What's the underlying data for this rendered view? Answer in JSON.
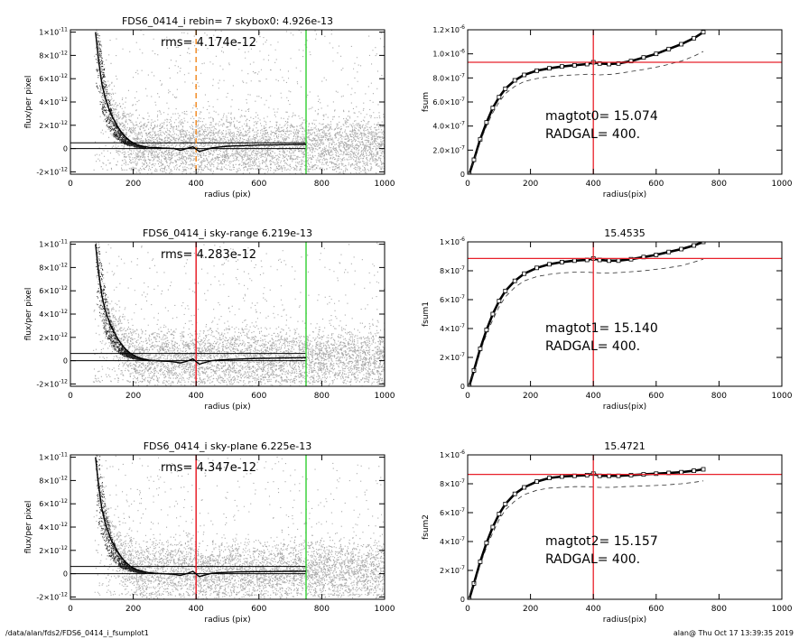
{
  "footer": {
    "path": "/data/alan/fds2/FDS6_0414_i_fsumplot1",
    "stamp": "alan@  Thu Oct 17 13:39:35 2019"
  },
  "colors": {
    "scatter": "#a9a9a9",
    "profile": "#000000",
    "red": "#e8202a",
    "green": "#3fd23f",
    "orange": "#f28c28"
  },
  "chart_data": [
    {
      "type": "scatter",
      "panel": "flux-profile-1",
      "title": "FDS6_0414_i rebin= 7    skybox0:  4.926e-13",
      "annotation": "rms= 4.174e-12",
      "xlabel": "radius (pix)",
      "ylabel": "flux/per pixel",
      "xlim": [
        0,
        1000
      ],
      "ylim": [
        -2.2e-12,
        1.02e-11
      ],
      "xticks": [
        0,
        200,
        400,
        600,
        800,
        1000
      ],
      "yticks": [
        "1×10^-11",
        "8×10^-12",
        "6×10^-12",
        "4×10^-12",
        "2×10^-12",
        "0",
        "-2×10^-12"
      ],
      "profile": {
        "x": [
          80,
          90,
          100,
          110,
          120,
          130,
          140,
          150,
          160,
          175,
          190,
          210,
          230,
          250,
          270,
          290,
          310,
          330,
          350,
          370,
          390,
          410,
          430,
          450,
          470,
          500,
          530,
          560,
          600,
          650,
          700,
          750
        ],
        "y": [
          1e-11,
          7.5e-12,
          5.6e-12,
          4.4e-12,
          3.6e-12,
          2.9e-12,
          2.4e-12,
          1.9e-12,
          1.5e-12,
          1e-12,
          6.5e-13,
          3.5e-13,
          2e-13,
          1e-13,
          8e-14,
          5e-14,
          3e-14,
          0,
          -1.5e-13,
          0,
          1.5e-13,
          -2.5e-13,
          -1e-13,
          6e-14,
          1.2e-13,
          2e-13,
          2.3e-13,
          2.6e-13,
          3e-13,
          3.2e-13,
          3.4e-13,
          3.6e-13
        ]
      },
      "hlines": [
        4.926e-13,
        0
      ],
      "vlines": [
        {
          "x": 400,
          "color": "orange",
          "dashed": true
        },
        {
          "x": 750,
          "color": "green",
          "dashed": false
        }
      ]
    },
    {
      "type": "line",
      "panel": "fsum-1",
      "title": "",
      "xlabel": "radius(pix)",
      "ylabel": "fsum",
      "xlim": [
        0,
        1000
      ],
      "ylim": [
        0,
        1.2e-06
      ],
      "xticks": [
        0,
        200,
        400,
        600,
        800,
        1000
      ],
      "yticks": [
        "1.2×10^-6",
        "1.0×10^-6",
        "8.0×10^-7",
        "6.0×10^-7",
        "4.0×10^-7",
        "2.0×10^-7",
        "0"
      ],
      "annotations": [
        "magtot0=  15.074",
        "RADGAL=    400."
      ],
      "series": [
        {
          "style": "squares",
          "x": [
            5,
            20,
            40,
            60,
            80,
            100,
            120,
            150,
            180,
            220,
            260,
            300,
            340,
            380,
            400,
            420,
            450,
            480,
            520,
            560,
            600,
            640,
            680,
            720,
            750
          ],
          "y": [
            0,
            1.2e-07,
            2.9e-07,
            4.3e-07,
            5.5e-07,
            6.4e-07,
            7.1e-07,
            7.8e-07,
            8.25e-07,
            8.6e-07,
            8.8e-07,
            8.95e-07,
            9.05e-07,
            9.15e-07,
            9.3e-07,
            9.2e-07,
            9.15e-07,
            9.2e-07,
            9.4e-07,
            9.7e-07,
            1e-06,
            1.04e-06,
            1.08e-06,
            1.13e-06,
            1.18e-06
          ]
        },
        {
          "style": "dashed",
          "x": [
            5,
            20,
            40,
            60,
            80,
            100,
            120,
            150,
            180,
            220,
            260,
            300,
            340,
            380,
            420,
            460,
            500,
            560,
            620,
            680,
            720,
            750
          ],
          "y": [
            0,
            1.1e-07,
            2.7e-07,
            4e-07,
            5.1e-07,
            6e-07,
            6.7e-07,
            7.3e-07,
            7.7e-07,
            7.95e-07,
            8.1e-07,
            8.2e-07,
            8.25e-07,
            8.3e-07,
            8.25e-07,
            8.3e-07,
            8.45e-07,
            8.7e-07,
            9e-07,
            9.4e-07,
            9.8e-07,
            1.02e-06
          ]
        }
      ],
      "hline": 9.3e-07,
      "vline": 400
    },
    {
      "type": "scatter",
      "panel": "flux-profile-2",
      "title": "FDS6_0414_i sky-range  6.219e-13",
      "annotation": "rms= 4.283e-12",
      "xlabel": "radius (pix)",
      "ylabel": "flux/per pixel",
      "xlim": [
        0,
        1000
      ],
      "ylim": [
        -2.2e-12,
        1.02e-11
      ],
      "xticks": [
        0,
        200,
        400,
        600,
        800,
        1000
      ],
      "yticks": [
        "1×10^-11",
        "8×10^-12",
        "6×10^-12",
        "4×10^-12",
        "2×10^-12",
        "0",
        "-2×10^-12"
      ],
      "profile": {
        "x": [
          80,
          90,
          100,
          110,
          120,
          130,
          140,
          150,
          160,
          175,
          190,
          210,
          230,
          250,
          270,
          290,
          310,
          330,
          350,
          370,
          390,
          410,
          430,
          450,
          470,
          500,
          530,
          560,
          600,
          650,
          700,
          750
        ],
        "y": [
          1e-11,
          7.5e-12,
          5.6e-12,
          4.4e-12,
          3.6e-12,
          2.9e-12,
          2.4e-12,
          1.9e-12,
          1.5e-12,
          1e-12,
          6.5e-13,
          3.5e-13,
          1.5e-13,
          5e-14,
          0,
          -3e-14,
          -5e-14,
          -1e-13,
          -2e-13,
          -5e-14,
          1.5e-13,
          -3e-13,
          -1.5e-13,
          0,
          5e-14,
          1e-13,
          1.3e-13,
          1.6e-13,
          2e-13,
          2.2e-13,
          2.4e-13,
          2.6e-13
        ]
      },
      "hlines": [
        6.219e-13,
        0
      ],
      "vlines": [
        {
          "x": 400,
          "color": "red",
          "dashed": false
        },
        {
          "x": 750,
          "color": "green",
          "dashed": false
        }
      ]
    },
    {
      "type": "line",
      "panel": "fsum-2",
      "title": "15.4535",
      "xlabel": "radius(pix)",
      "ylabel": "fsum1",
      "xlim": [
        0,
        1000
      ],
      "ylim": [
        0,
        1e-06
      ],
      "xticks": [
        0,
        200,
        400,
        600,
        800,
        1000
      ],
      "yticks": [
        "1×10^-6",
        "8×10^-7",
        "6×10^-7",
        "4×10^-7",
        "2×10^-7",
        "0"
      ],
      "annotations": [
        "magtot1=  15.140",
        "RADGAL=    400."
      ],
      "series": [
        {
          "style": "squares",
          "x": [
            5,
            20,
            40,
            60,
            80,
            100,
            120,
            150,
            180,
            220,
            260,
            300,
            340,
            380,
            400,
            420,
            450,
            480,
            520,
            560,
            600,
            640,
            680,
            720,
            750
          ],
          "y": [
            0,
            1.1e-07,
            2.6e-07,
            3.9e-07,
            5e-07,
            5.9e-07,
            6.6e-07,
            7.3e-07,
            7.8e-07,
            8.2e-07,
            8.45e-07,
            8.6e-07,
            8.7e-07,
            8.75e-07,
            8.85e-07,
            8.75e-07,
            8.7e-07,
            8.7e-07,
            8.8e-07,
            8.95e-07,
            9.1e-07,
            9.3e-07,
            9.5e-07,
            9.75e-07,
            1e-06
          ]
        },
        {
          "style": "dashed",
          "x": [
            5,
            20,
            40,
            60,
            80,
            100,
            120,
            150,
            180,
            220,
            260,
            300,
            340,
            380,
            420,
            460,
            500,
            560,
            620,
            680,
            720,
            750
          ],
          "y": [
            0,
            1e-07,
            2.4e-07,
            3.6e-07,
            4.6e-07,
            5.5e-07,
            6.2e-07,
            6.85e-07,
            7.3e-07,
            7.6e-07,
            7.75e-07,
            7.85e-07,
            7.9e-07,
            7.9e-07,
            7.85e-07,
            7.85e-07,
            7.9e-07,
            8e-07,
            8.15e-07,
            8.35e-07,
            8.6e-07,
            8.8e-07
          ]
        }
      ],
      "hline": 8.85e-07,
      "vline": 400
    },
    {
      "type": "scatter",
      "panel": "flux-profile-3",
      "title": "FDS6_0414_i sky-plane  6.225e-13",
      "annotation": "rms= 4.347e-12",
      "xlabel": "radius (pix)",
      "ylabel": "flux/per pixel",
      "xlim": [
        0,
        1000
      ],
      "ylim": [
        -2.2e-12,
        1.02e-11
      ],
      "xticks": [
        0,
        200,
        400,
        600,
        800,
        1000
      ],
      "yticks": [
        "1×10^-11",
        "8×10^-12",
        "6×10^-12",
        "4×10^-12",
        "2×10^-12",
        "0",
        "-2×10^-12"
      ],
      "profile": {
        "x": [
          80,
          90,
          100,
          110,
          120,
          130,
          140,
          150,
          160,
          175,
          190,
          210,
          230,
          250,
          270,
          290,
          310,
          330,
          350,
          370,
          390,
          410,
          430,
          450,
          470,
          500,
          530,
          560,
          600,
          650,
          700,
          750
        ],
        "y": [
          1e-11,
          7.5e-12,
          5.6e-12,
          4.4e-12,
          3.6e-12,
          2.9e-12,
          2.4e-12,
          1.9e-12,
          1.5e-12,
          1e-12,
          6.5e-13,
          3.5e-13,
          2e-13,
          8e-14,
          3e-14,
          0,
          -2e-14,
          -5e-14,
          -1.5e-13,
          0,
          2e-13,
          -2.5e-13,
          -1e-13,
          3e-14,
          8e-14,
          1.2e-13,
          1.5e-13,
          1.6e-13,
          1.8e-13,
          1.9e-13,
          2e-13,
          2.1e-13
        ]
      },
      "hlines": [
        6.225e-13,
        0
      ],
      "vlines": [
        {
          "x": 400,
          "color": "red",
          "dashed": false
        },
        {
          "x": 750,
          "color": "green",
          "dashed": false
        }
      ]
    },
    {
      "type": "line",
      "panel": "fsum-3",
      "title": "15.4721",
      "xlabel": "radius(pix)",
      "ylabel": "fsum2",
      "xlim": [
        0,
        1000
      ],
      "ylim": [
        0,
        1e-06
      ],
      "xticks": [
        0,
        200,
        400,
        600,
        800,
        1000
      ],
      "yticks": [
        "1×10^-6",
        "8×10^-7",
        "6×10^-7",
        "4×10^-7",
        "2×10^-7",
        "0"
      ],
      "annotations": [
        "magtot2=  15.157",
        "RADGAL=    400."
      ],
      "series": [
        {
          "style": "squares",
          "x": [
            5,
            20,
            40,
            60,
            80,
            100,
            120,
            150,
            180,
            220,
            260,
            300,
            340,
            380,
            400,
            420,
            450,
            480,
            520,
            560,
            600,
            640,
            680,
            720,
            750
          ],
          "y": [
            0,
            1.1e-07,
            2.6e-07,
            3.9e-07,
            5e-07,
            5.9e-07,
            6.6e-07,
            7.3e-07,
            7.75e-07,
            8.15e-07,
            8.4e-07,
            8.5e-07,
            8.55e-07,
            8.6e-07,
            8.7e-07,
            8.55e-07,
            8.55e-07,
            8.55e-07,
            8.6e-07,
            8.65e-07,
            8.7e-07,
            8.75e-07,
            8.8e-07,
            8.9e-07,
            9e-07
          ]
        },
        {
          "style": "dashed",
          "x": [
            5,
            20,
            40,
            60,
            80,
            100,
            120,
            150,
            180,
            220,
            260,
            300,
            340,
            380,
            420,
            460,
            500,
            560,
            620,
            680,
            720,
            750
          ],
          "y": [
            0,
            1e-07,
            2.4e-07,
            3.6e-07,
            4.6e-07,
            5.5e-07,
            6.2e-07,
            6.8e-07,
            7.25e-07,
            7.55e-07,
            7.7e-07,
            7.75e-07,
            7.8e-07,
            7.8e-07,
            7.75e-07,
            7.75e-07,
            7.8e-07,
            7.85e-07,
            7.9e-07,
            8e-07,
            8.1e-07,
            8.2e-07
          ]
        }
      ],
      "hline": 8.65e-07,
      "vline": 400
    }
  ]
}
